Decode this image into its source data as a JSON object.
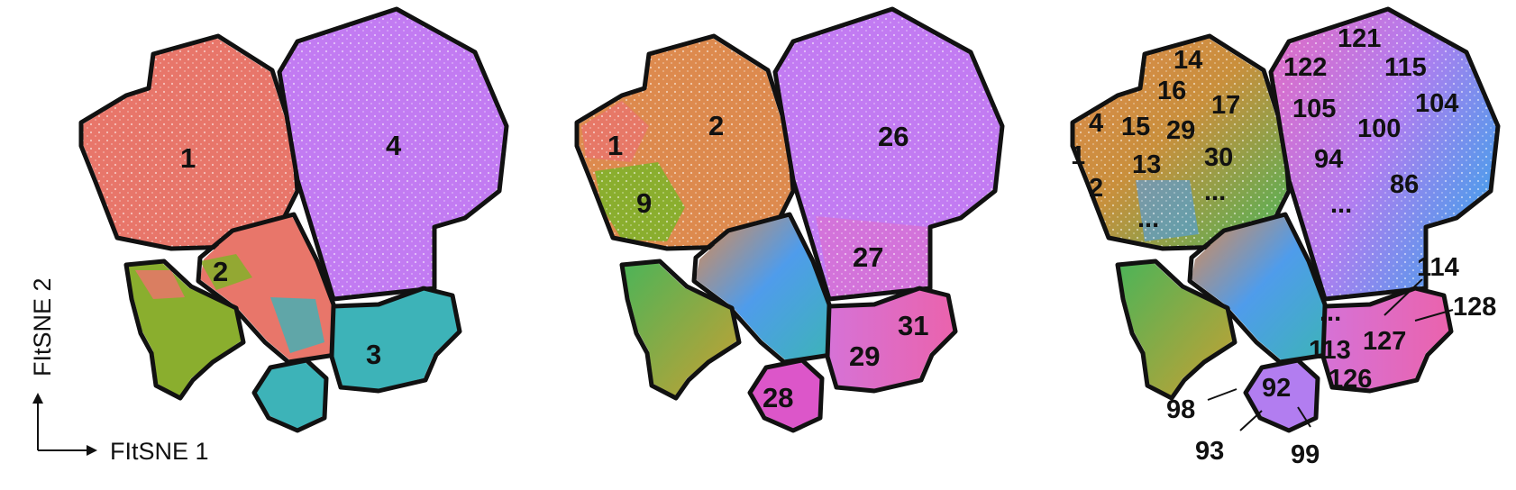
{
  "axes": {
    "x_label": "FItSNE 1",
    "y_label": "FItSNE 2"
  },
  "panels": [
    {
      "labels": [
        "1",
        "4",
        "2",
        "3"
      ]
    },
    {
      "labels": [
        "1",
        "2",
        "9",
        "26",
        "27",
        "31",
        "29",
        "28"
      ]
    },
    {
      "labels": [
        "14",
        "16",
        "17",
        "4",
        "15",
        "29",
        "1",
        "13",
        "30",
        "2",
        "...",
        "...",
        "121",
        "122",
        "115",
        "105",
        "104",
        "100",
        "94",
        "86",
        "...",
        "114",
        "128",
        "...",
        "127",
        "113",
        "126",
        "92",
        "98",
        "93",
        "99"
      ]
    }
  ],
  "colors": {
    "salmon": "#E8766A",
    "violet": "#C27BF2",
    "teal": "#3DB3B8",
    "olive": "#8AAE2E",
    "orange": "#DD8A4E",
    "green": "#4CB458",
    "blue": "#4F9CEB",
    "pink": "#EA63AD",
    "magenta": "#DC56C9",
    "lavender": "#B27DF0",
    "gold": "#C7A033",
    "outline": "#111111"
  }
}
